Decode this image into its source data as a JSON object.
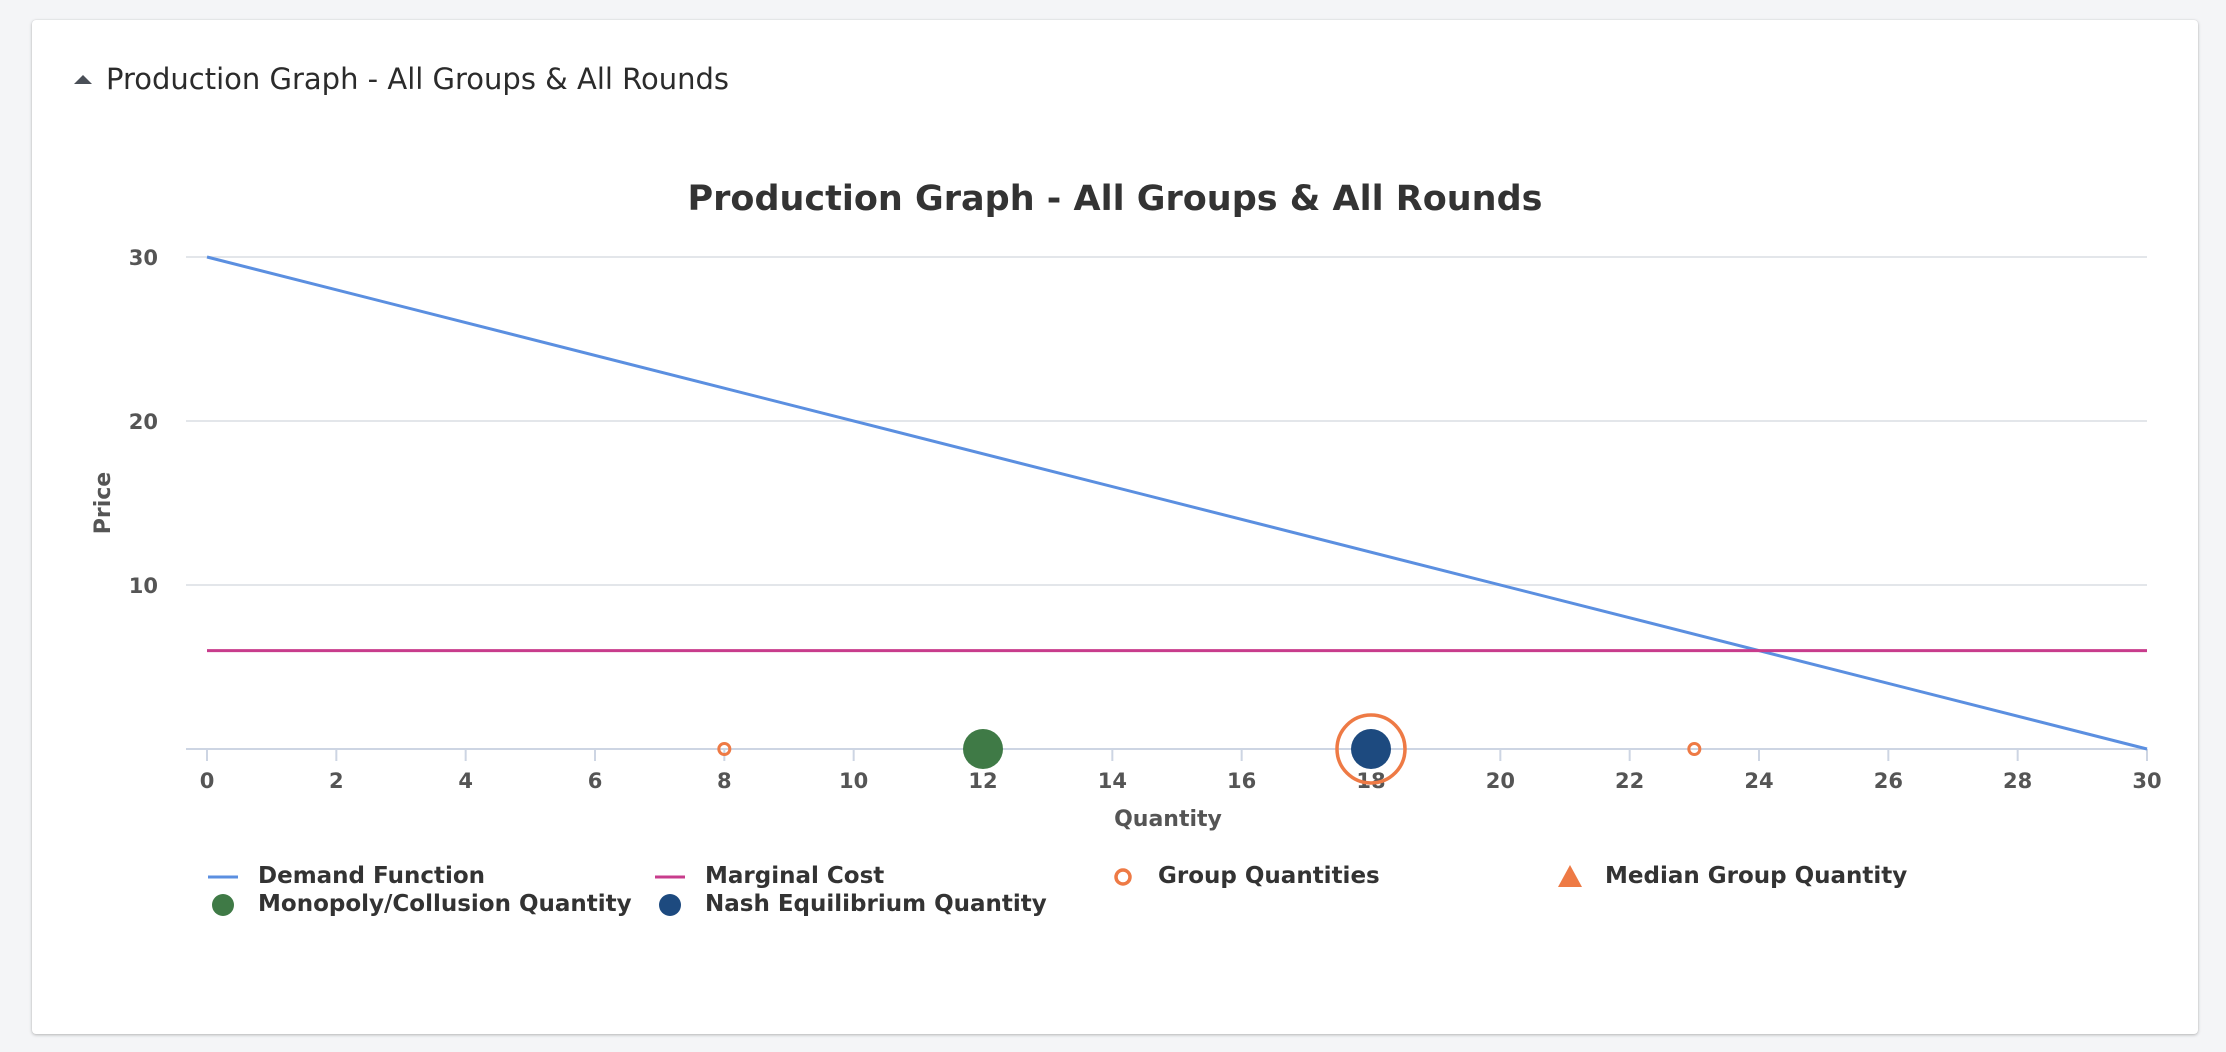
{
  "panel": {
    "title": "Production Graph - All Groups & All Rounds",
    "collapse_icon": "caret-up-icon"
  },
  "chart_data": {
    "type": "scatter",
    "title": "Production Graph - All Groups & All Rounds",
    "xlabel": "Quantity",
    "ylabel": "Price",
    "xlim": [
      0,
      30
    ],
    "ylim": [
      0,
      30
    ],
    "x_ticks": [
      0,
      2,
      4,
      6,
      8,
      10,
      12,
      14,
      16,
      18,
      20,
      22,
      24,
      26,
      28,
      30
    ],
    "y_ticks": [
      10,
      20,
      30
    ],
    "grid": "horizontal",
    "legend_position": "bottom",
    "series": [
      {
        "name": "Demand Function",
        "kind": "line",
        "color": "#5b8fe0",
        "points": [
          [
            0,
            30
          ],
          [
            30,
            0
          ]
        ]
      },
      {
        "name": "Marginal Cost",
        "kind": "line",
        "color": "#c83c8c",
        "points": [
          [
            0,
            6
          ],
          [
            30,
            6
          ]
        ]
      },
      {
        "name": "Group Quantities",
        "kind": "hollow-circle",
        "color": "#ee7a45",
        "points": [
          [
            8,
            0
          ],
          [
            18,
            0
          ],
          [
            23,
            0
          ]
        ],
        "sizes": [
          1,
          4,
          1
        ]
      },
      {
        "name": "Median Group Quantity",
        "kind": "triangle",
        "color": "#ee7a45",
        "points": [
          [
            18,
            0
          ]
        ]
      },
      {
        "name": "Monopoly/Collusion Quantity",
        "kind": "circle",
        "color": "#3f7a46",
        "points": [
          [
            12,
            0
          ]
        ]
      },
      {
        "name": "Nash Equilibrium Quantity",
        "kind": "circle",
        "color": "#1d4a7f",
        "points": [
          [
            18,
            0
          ]
        ]
      }
    ]
  }
}
